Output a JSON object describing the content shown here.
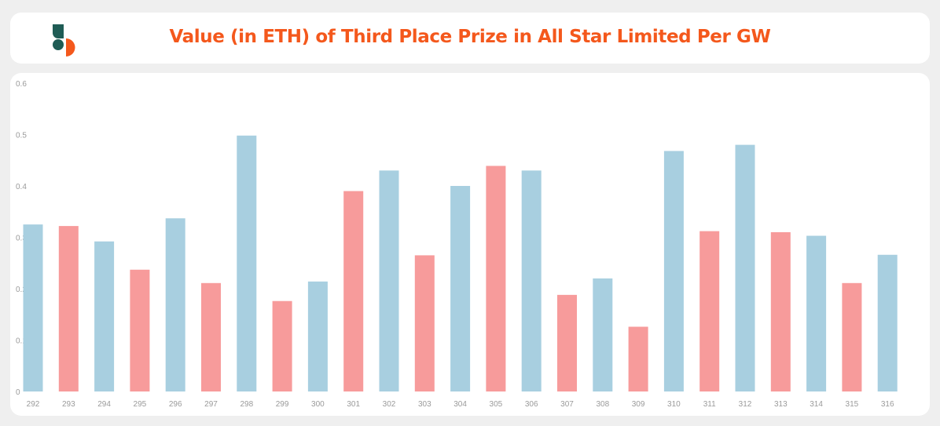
{
  "header": {
    "title": "Value (in ETH) of Third Place Prize in All Star Limited Per GW",
    "logo_icon": "sorare-s-logo-icon"
  },
  "colors": {
    "accent": "#f4581c",
    "logo_teal": "#1f5c55",
    "bar_blue": "#a8cfe0",
    "bar_red": "#f79b9b",
    "tick_text": "#9a9a9a"
  },
  "chart_data": {
    "type": "bar",
    "title": "Value (in ETH) of Third Place Prize in All Star Limited Per GW",
    "xlabel": "",
    "ylabel": "",
    "ylim": [
      0,
      0.6
    ],
    "yticks": [
      "0",
      "0.1",
      "0.2",
      "0.3",
      "0.4",
      "0.5",
      "0.6"
    ],
    "grid": false,
    "categories": [
      "292",
      "293",
      "294",
      "295",
      "296",
      "297",
      "298",
      "299",
      "300",
      "301",
      "302",
      "303",
      "304",
      "305",
      "306",
      "307",
      "308",
      "309",
      "310",
      "311",
      "312",
      "313",
      "314",
      "315",
      "316"
    ],
    "values": [
      0.325,
      0.322,
      0.292,
      0.237,
      0.337,
      0.211,
      0.498,
      0.176,
      0.214,
      0.39,
      0.43,
      0.265,
      0.4,
      0.439,
      0.43,
      0.188,
      0.22,
      0.126,
      0.468,
      0.312,
      0.48,
      0.31,
      0.303,
      0.211,
      0.266
    ],
    "bar_colors": [
      "#a8cfe0",
      "#f79b9b",
      "#a8cfe0",
      "#f79b9b",
      "#a8cfe0",
      "#f79b9b",
      "#a8cfe0",
      "#f79b9b",
      "#a8cfe0",
      "#f79b9b",
      "#a8cfe0",
      "#f79b9b",
      "#a8cfe0",
      "#f79b9b",
      "#a8cfe0",
      "#f79b9b",
      "#a8cfe0",
      "#f79b9b",
      "#a8cfe0",
      "#f79b9b",
      "#a8cfe0",
      "#f79b9b",
      "#a8cfe0",
      "#f79b9b",
      "#a8cfe0"
    ]
  }
}
